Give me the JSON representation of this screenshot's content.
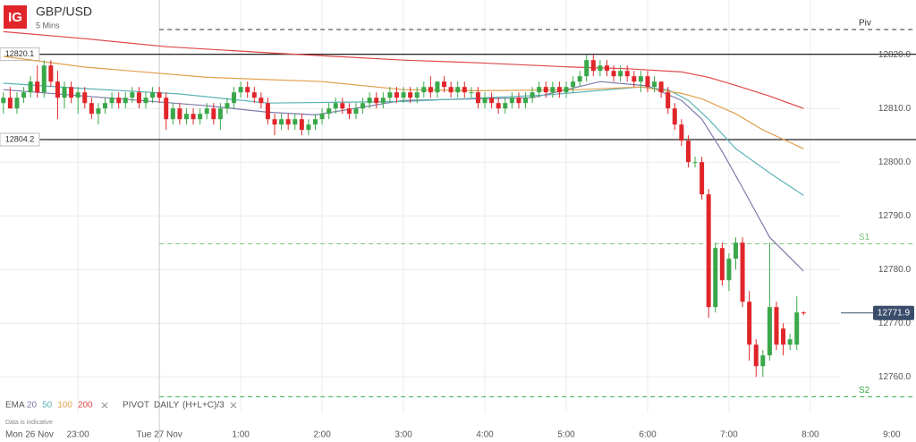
{
  "chart_data": {
    "type": "candlestick",
    "logo": "IG",
    "title": "GBP/USD",
    "subtitle": "5 Mins",
    "up_color": "#3aa84a",
    "down_color": "#e0262b",
    "xlim": [
      -0.5,
      123.5
    ],
    "ylim": [
      12753.2,
      12830.2
    ],
    "start_label": "Mon 26 Nov",
    "xticks": [
      {
        "value": 11,
        "label": "23:00"
      },
      {
        "value": 23,
        "label": "Tue 27 Nov"
      },
      {
        "value": 35,
        "label": "1:00"
      },
      {
        "value": 47,
        "label": "2:00"
      },
      {
        "value": 59,
        "label": "3:00"
      },
      {
        "value": 71,
        "label": "4:00"
      },
      {
        "value": 83,
        "label": "5:00"
      },
      {
        "value": 95,
        "label": "6:00"
      },
      {
        "value": 107,
        "label": "7:00"
      },
      {
        "value": 119,
        "label": "8:00"
      },
      {
        "value": 131,
        "label": "9:00"
      }
    ],
    "yticks": [
      {
        "value": 12760,
        "label": "12760.0"
      },
      {
        "value": 12770,
        "label": "12770.0"
      },
      {
        "value": 12780,
        "label": "12780.0"
      },
      {
        "value": 12790,
        "label": "12790.0"
      },
      {
        "value": 12800,
        "label": "12800.0"
      },
      {
        "value": 12810,
        "label": "12810.0"
      },
      {
        "value": 12820,
        "label": "12820.0"
      }
    ],
    "grid": true,
    "candles": [
      [
        12811,
        12813,
        12809,
        12812
      ],
      [
        12812,
        12814,
        12810,
        12810
      ],
      [
        12810,
        12813,
        12809,
        12812
      ],
      [
        12812,
        12814,
        12811,
        12813
      ],
      [
        12813,
        12816,
        12812,
        12815
      ],
      [
        12815,
        12818,
        12812,
        12813
      ],
      [
        12813,
        12819,
        12812,
        12818
      ],
      [
        12818,
        12819,
        12814,
        12815
      ],
      [
        12815,
        12817,
        12808,
        12812
      ],
      [
        12812,
        12815,
        12810,
        12814
      ],
      [
        12814,
        12815,
        12811,
        12812
      ],
      [
        12812,
        12814,
        12809,
        12813
      ],
      [
        12813,
        12814,
        12810,
        12811
      ],
      [
        12811,
        12812,
        12808,
        12809
      ],
      [
        12809,
        12811,
        12807,
        12810
      ],
      [
        12810,
        12812,
        12809,
        12811
      ],
      [
        12811,
        12813,
        12810,
        12812
      ],
      [
        12812,
        12813,
        12810,
        12811
      ],
      [
        12811,
        12813,
        12810,
        12812
      ],
      [
        12812,
        12814,
        12811,
        12813
      ],
      [
        12813,
        12814,
        12810,
        12811
      ],
      [
        12811,
        12813,
        12810,
        12812
      ],
      [
        12812,
        12814,
        12811,
        12813
      ],
      [
        12813,
        12814,
        12811,
        12812
      ],
      [
        12812,
        12813,
        12806,
        12808
      ],
      [
        12808,
        12811,
        12807,
        12810
      ],
      [
        12810,
        12811,
        12807,
        12808
      ],
      [
        12808,
        12810,
        12807,
        12809
      ],
      [
        12809,
        12810,
        12807,
        12808
      ],
      [
        12808,
        12810,
        12807,
        12809
      ],
      [
        12809,
        12811,
        12808,
        12810
      ],
      [
        12810,
        12811,
        12807,
        12808
      ],
      [
        12808,
        12811,
        12806,
        12810
      ],
      [
        12810,
        12812,
        12809,
        12811
      ],
      [
        12811,
        12814,
        12810,
        12813
      ],
      [
        12813,
        12815,
        12812,
        12814
      ],
      [
        12814,
        12815,
        12812,
        12813
      ],
      [
        12813,
        12814,
        12811,
        12812
      ],
      [
        12812,
        12813,
        12810,
        12811
      ],
      [
        12811,
        12812,
        12807,
        12808
      ],
      [
        12808,
        12809,
        12805,
        12807
      ],
      [
        12807,
        12809,
        12806,
        12808
      ],
      [
        12808,
        12809,
        12806,
        12807
      ],
      [
        12807,
        12809,
        12806,
        12808
      ],
      [
        12808,
        12809,
        12805,
        12806
      ],
      [
        12806,
        12808,
        12805,
        12807
      ],
      [
        12807,
        12809,
        12806,
        12808
      ],
      [
        12808,
        12810,
        12807,
        12809
      ],
      [
        12809,
        12811,
        12808,
        12810
      ],
      [
        12810,
        12812,
        12809,
        12811
      ],
      [
        12811,
        12812,
        12809,
        12810
      ],
      [
        12810,
        12811,
        12808,
        12809
      ],
      [
        12809,
        12811,
        12808,
        12810
      ],
      [
        12810,
        12812,
        12809,
        12811
      ],
      [
        12811,
        12813,
        12810,
        12812
      ],
      [
        12812,
        12813,
        12810,
        12811
      ],
      [
        12811,
        12813,
        12810,
        12812
      ],
      [
        12812,
        12814,
        12811,
        12813
      ],
      [
        12813,
        12814,
        12811,
        12812
      ],
      [
        12812,
        12814,
        12811,
        12813
      ],
      [
        12813,
        12814,
        12811,
        12812
      ],
      [
        12812,
        12814,
        12811,
        12813
      ],
      [
        12813,
        12815,
        12812,
        12814
      ],
      [
        12814,
        12816,
        12812,
        12813
      ],
      [
        12813,
        12815,
        12812,
        12815
      ],
      [
        12815,
        12816,
        12813,
        12814
      ],
      [
        12814,
        12815,
        12812,
        12813
      ],
      [
        12813,
        12815,
        12812,
        12814
      ],
      [
        12814,
        12815,
        12812,
        12813
      ],
      [
        12813,
        12814,
        12812,
        12813
      ],
      [
        12813,
        12814,
        12810,
        12811
      ],
      [
        12811,
        12813,
        12810,
        12812
      ],
      [
        12812,
        12813,
        12810,
        12811
      ],
      [
        12811,
        12812,
        12809,
        12810
      ],
      [
        12810,
        12812,
        12809,
        12811
      ],
      [
        12811,
        12813,
        12810,
        12812
      ],
      [
        12812,
        12813,
        12810,
        12811
      ],
      [
        12811,
        12813,
        12810,
        12812
      ],
      [
        12812,
        12814,
        12811,
        12813
      ],
      [
        12813,
        12815,
        12812,
        12814
      ],
      [
        12814,
        12815,
        12812,
        12813
      ],
      [
        12813,
        12815,
        12812,
        12814
      ],
      [
        12814,
        12815,
        12812,
        12813
      ],
      [
        12813,
        12815,
        12812,
        12814
      ],
      [
        12814,
        12816,
        12813,
        12815
      ],
      [
        12815,
        12817,
        12814,
        12816
      ],
      [
        12816,
        12820,
        12815,
        12819
      ],
      [
        12819,
        12820,
        12816,
        12817
      ],
      [
        12817,
        12819,
        12816,
        12818
      ],
      [
        12818,
        12819,
        12816,
        12817
      ],
      [
        12817,
        12818,
        12815,
        12816
      ],
      [
        12816,
        12818,
        12815,
        12817
      ],
      [
        12817,
        12818,
        12815,
        12816
      ],
      [
        12816,
        12817,
        12814,
        12815
      ],
      [
        12815,
        12817,
        12813,
        12816
      ],
      [
        12816,
        12817,
        12813,
        12814
      ],
      [
        12814,
        12816,
        12813,
        12815
      ],
      [
        12815,
        12815,
        12812,
        12813
      ],
      [
        12813,
        12814,
        12809,
        12810
      ],
      [
        12810,
        12811,
        12806,
        12807
      ],
      [
        12807,
        12808,
        12803,
        12804
      ],
      [
        12804,
        12805,
        12799,
        12800
      ],
      [
        12800,
        12801,
        12799,
        12800
      ],
      [
        12800,
        12801,
        12793,
        12794
      ],
      [
        12794,
        12795,
        12771,
        12773
      ],
      [
        12773,
        12785,
        12772,
        12784
      ],
      [
        12784,
        12785,
        12777,
        12778
      ],
      [
        12778,
        12783,
        12776,
        12782
      ],
      [
        12782,
        12786,
        12780,
        12785
      ],
      [
        12785,
        12786,
        12773,
        12774
      ],
      [
        12774,
        12776,
        12763,
        12766
      ],
      [
        12766,
        12767,
        12760,
        12762
      ],
      [
        12762,
        12765,
        12760,
        12764
      ],
      [
        12764,
        12785,
        12763,
        12773
      ],
      [
        12773,
        12774,
        12765,
        12766
      ],
      [
        12769,
        12770,
        12764,
        12766
      ],
      [
        12766,
        12768,
        12765,
        12767
      ],
      [
        12766,
        12775,
        12765,
        12772
      ],
      [
        12772,
        12772.2,
        12771.5,
        12771.9
      ]
    ],
    "last_price": 12771.9,
    "indicator": "EMA",
    "series": [
      {
        "name": "20",
        "color": "#7d7aa8",
        "x": [
          0,
          15,
          30,
          39,
          46,
          59,
          78,
          88,
          95,
          100,
          103,
          106,
          109,
          113,
          118
        ],
        "values": [
          12813.5,
          12812,
          12810.5,
          12809.3,
          12808.8,
          12811.5,
          12812,
          12815,
          12814.2,
          12811.5,
          12808,
          12802,
          12795.2,
          12786,
          12779.7
        ]
      },
      {
        "name": "50",
        "color": "#5db3b6",
        "x": [
          0,
          12,
          26,
          39,
          59,
          80,
          94,
          98,
          101,
          104,
          108,
          113,
          118
        ],
        "values": [
          12814.7,
          12813.7,
          12812.7,
          12811,
          12811.3,
          12812.5,
          12814,
          12813.5,
          12811.5,
          12808,
          12802.5,
          12798,
          12793.8
        ]
      },
      {
        "name": "100",
        "color": "#e0a04e",
        "x": [
          0,
          12,
          30,
          47,
          59,
          70,
          85,
          94,
          100,
          103,
          108,
          112,
          118
        ],
        "values": [
          12819.7,
          12817.7,
          12815.8,
          12815,
          12813.5,
          12813.3,
          12813.5,
          12814,
          12812.8,
          12811.8,
          12809,
          12806,
          12802.5
        ]
      },
      {
        "name": "200",
        "color": "#e04848",
        "x": [
          0,
          12,
          24,
          40,
          59,
          70,
          84,
          92,
          100,
          104,
          108,
          113,
          118
        ],
        "values": [
          12824.3,
          12823,
          12821.5,
          12820.3,
          12819,
          12818.5,
          12817.7,
          12817.4,
          12816.8,
          12815.8,
          12814.3,
          12812.3,
          12810
        ]
      }
    ],
    "support_lines": [
      12820.1,
      12804.2
    ],
    "pivot": {
      "name": "PIVOT",
      "period": "DAILY",
      "formula": "(H+L+C)/3",
      "levels": [
        {
          "label": "Piv",
          "value": 12824.7,
          "color": "#333333"
        },
        {
          "label": "S1",
          "value": 12784.8,
          "color": "#7cc47c"
        },
        {
          "label": "S2",
          "value": 12756.3,
          "color": "#3aa84a"
        }
      ]
    },
    "note": "Data is indicative"
  }
}
